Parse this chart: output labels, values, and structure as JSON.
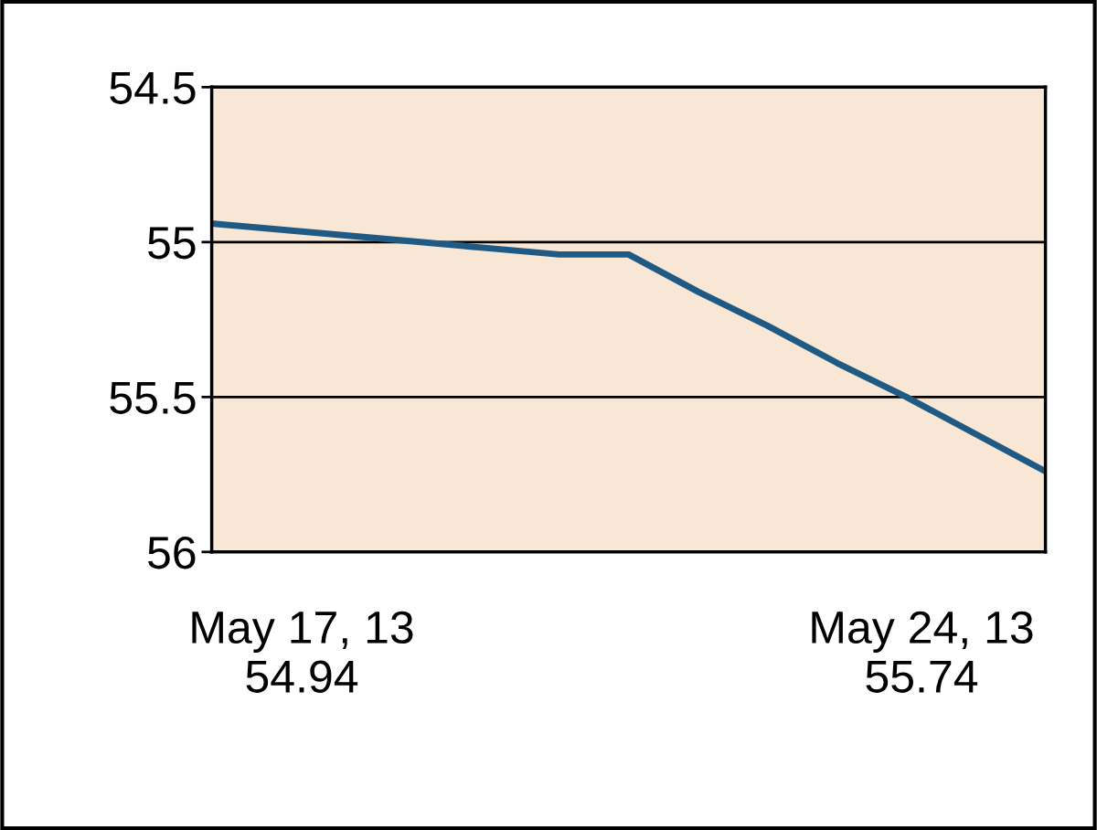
{
  "chart_data": {
    "type": "line",
    "categories": [
      null,
      null,
      null,
      null,
      null,
      null,
      null,
      null,
      null,
      null,
      null,
      null,
      null
    ],
    "series": [
      {
        "color": "#1f5a85",
        "values": [
          54.94,
          54.96,
          54.98,
          55.0,
          55.02,
          55.04,
          55.04,
          55.16,
          55.27,
          55.39,
          55.5,
          55.62,
          55.74
        ]
      }
    ],
    "ylim": [
      56,
      54.5
    ],
    "yticks": [
      54.5,
      55,
      55.5,
      56
    ],
    "grid": "y",
    "tick_labels": "y",
    "annotations": [
      "May 17, 13\n54.94",
      "May 24, 13\n55.74"
    ]
  }
}
